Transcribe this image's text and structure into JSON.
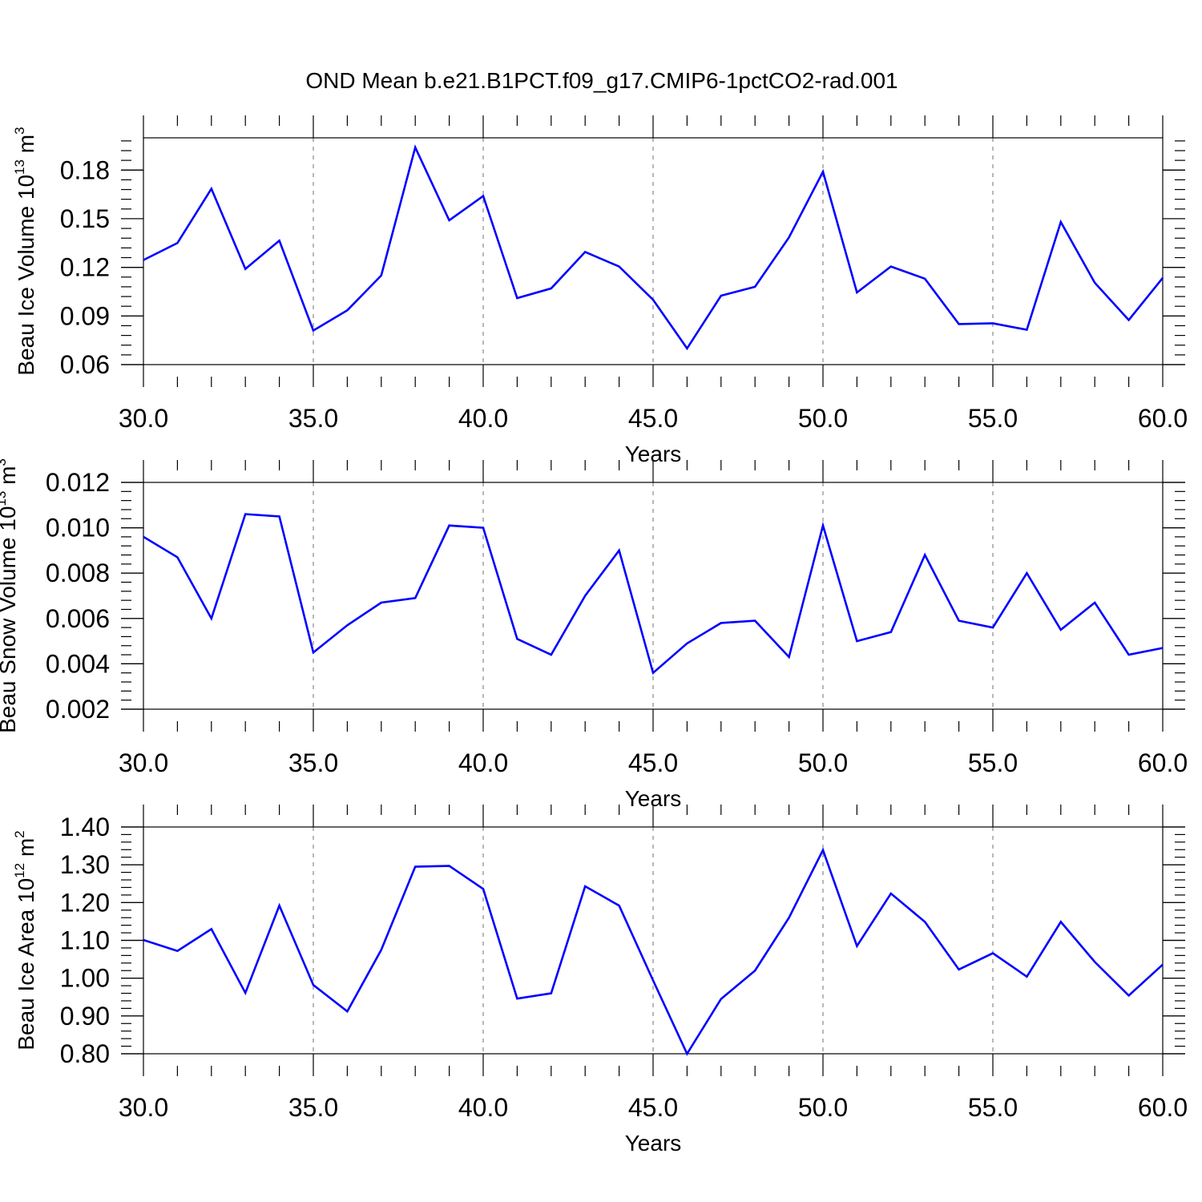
{
  "chart_data": {
    "title": "OND Mean b.e21.B1PCT.f09_g17.CMIP6-1pctCO2-rad.001",
    "panels": [
      {
        "type": "line",
        "xlabel": "Years",
        "ylabel_main": "Beau Ice Volume 10",
        "ylabel_exp": "13",
        "ylabel_unit": "m",
        "ylabel_unit_exp": "3",
        "xlim": [
          30,
          60
        ],
        "ylim": [
          0.06,
          0.1999
        ],
        "yticks": [
          0.06,
          0.09,
          0.12,
          0.15,
          0.18
        ],
        "ytick_labels": [
          "0.06",
          "0.09",
          "0.12",
          "0.15",
          "0.18"
        ],
        "yminor_step": 0.006,
        "x": [
          30,
          31,
          32,
          33,
          34,
          35,
          36,
          37,
          38,
          39,
          40,
          41,
          42,
          43,
          44,
          45,
          46,
          47,
          48,
          49,
          50,
          51,
          52,
          53,
          54,
          55,
          56,
          57,
          58,
          59,
          60
        ],
        "series": [
          {
            "color": "#0000ff",
            "values": [
              0.1245,
              0.135,
              0.1685,
              0.119,
              0.1365,
              0.081,
              0.0935,
              0.115,
              0.194,
              0.149,
              0.164,
              0.101,
              0.107,
              0.1295,
              0.1205,
              0.1,
              0.07,
              0.1025,
              0.108,
              0.1385,
              0.179,
              0.1045,
              0.1205,
              0.113,
              0.085,
              0.0855,
              0.0815,
              0.148,
              0.1105,
              0.0875,
              0.1135
            ]
          }
        ]
      },
      {
        "type": "line",
        "xlabel": "Years",
        "ylabel_main": "Beau Snow Volume 10",
        "ylabel_exp": "13",
        "ylabel_unit": "m",
        "ylabel_unit_exp": "3",
        "xlim": [
          30,
          60
        ],
        "ylim": [
          0.002,
          0.012
        ],
        "yticks": [
          0.002,
          0.004,
          0.006,
          0.008,
          0.01,
          0.012
        ],
        "ytick_labels": [
          "0.002",
          "0.004",
          "0.006",
          "0.008",
          "0.010",
          "0.012"
        ],
        "yminor_step": 0.0004,
        "x": [
          30,
          31,
          32,
          33,
          34,
          35,
          36,
          37,
          38,
          39,
          40,
          41,
          42,
          43,
          44,
          45,
          46,
          47,
          48,
          49,
          50,
          51,
          52,
          53,
          54,
          55,
          56,
          57,
          58,
          59,
          60
        ],
        "series": [
          {
            "color": "#0000ff",
            "values": [
              0.0096,
              0.0087,
              0.006,
              0.0106,
              0.0105,
              0.0045,
              0.0057,
              0.0067,
              0.0069,
              0.0101,
              0.01,
              0.0051,
              0.0044,
              0.007,
              0.009,
              0.0036,
              0.0049,
              0.0058,
              0.0059,
              0.0043,
              0.0101,
              0.005,
              0.0054,
              0.0088,
              0.0059,
              0.0056,
              0.008,
              0.0055,
              0.0067,
              0.0044,
              0.0047
            ]
          }
        ]
      },
      {
        "type": "line",
        "xlabel": "Years",
        "ylabel_main": "Beau Ice Area 10",
        "ylabel_exp": "12",
        "ylabel_unit": "m",
        "ylabel_unit_exp": "2",
        "xlim": [
          30,
          60
        ],
        "ylim": [
          0.8,
          1.4
        ],
        "yticks": [
          0.8,
          0.9,
          1.0,
          1.1,
          1.2,
          1.3,
          1.4
        ],
        "ytick_labels": [
          "0.80",
          "0.90",
          "1.00",
          "1.10",
          "1.20",
          "1.30",
          "1.40"
        ],
        "yminor_step": 0.02,
        "x": [
          30,
          31,
          32,
          33,
          34,
          35,
          36,
          37,
          38,
          39,
          40,
          41,
          42,
          43,
          44,
          45,
          46,
          47,
          48,
          49,
          50,
          51,
          52,
          53,
          54,
          55,
          56,
          57,
          58,
          59,
          60
        ],
        "series": [
          {
            "color": "#0000ff",
            "values": [
              1.101,
              1.072,
              1.13,
              0.961,
              1.192,
              0.982,
              0.912,
              1.075,
              1.295,
              1.297,
              1.236,
              0.946,
              0.96,
              1.243,
              1.192,
              0.994,
              0.8,
              0.945,
              1.02,
              1.16,
              1.339,
              1.085,
              1.224,
              1.149,
              1.023,
              1.066,
              1.004,
              1.149,
              1.043,
              0.954,
              1.036
            ]
          }
        ]
      }
    ],
    "xticks": [
      30,
      35,
      40,
      45,
      50,
      55,
      60
    ],
    "xtick_labels": [
      "30.0",
      "35.0",
      "40.0",
      "45.0",
      "50.0",
      "55.0",
      "60.0"
    ],
    "xgrid_at": [
      35,
      40,
      45,
      50,
      55
    ],
    "grid": "vertical dashed at major x ticks"
  }
}
